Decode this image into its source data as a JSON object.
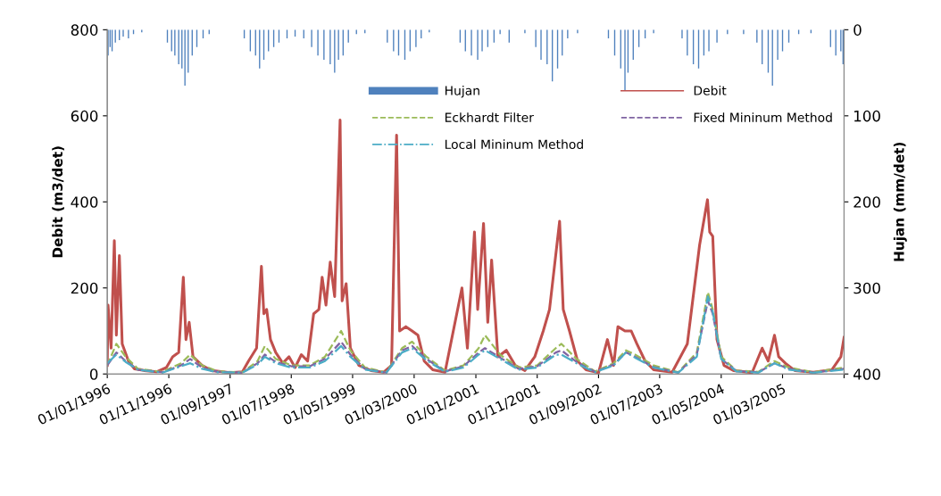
{
  "chart_data": {
    "type": "line",
    "ylabel": "Debit (m3/det)",
    "y2label": "Hujan (mm/det)",
    "ylim": [
      0,
      800
    ],
    "yticks": [
      0,
      200,
      400,
      600,
      800
    ],
    "y2lim": [
      400,
      0
    ],
    "y2ticks": [
      0,
      100,
      200,
      300,
      400
    ],
    "xlim": [
      "1996-01-01",
      "2005-12-31"
    ],
    "xticks": [
      {
        "value": "1996-01-01",
        "label": "01/01/1996"
      },
      {
        "value": "1996-11-01",
        "label": "01/11/1996"
      },
      {
        "value": "1997-09-01",
        "label": "01/09/1997"
      },
      {
        "value": "1998-07-01",
        "label": "01/07/1998"
      },
      {
        "value": "1999-05-01",
        "label": "01/05/1999"
      },
      {
        "value": "2000-03-01",
        "label": "01/03/2000"
      },
      {
        "value": "2001-01-01",
        "label": "01/01/2001"
      },
      {
        "value": "2001-11-01",
        "label": "01/11/2001"
      },
      {
        "value": "2002-09-01",
        "label": "01/09/2002"
      },
      {
        "value": "2003-07-01",
        "label": "01/07/2003"
      },
      {
        "value": "2004-05-01",
        "label": "01/05/2004"
      },
      {
        "value": "2005-03-01",
        "label": "01/03/2005"
      },
      {
        "value": "2005-12-31",
        "label": null
      }
    ],
    "grid": false,
    "legend": "top right",
    "series": [
      {
        "name": "Hujan",
        "type": "bar",
        "axis": "y2",
        "color": "#4f81bd",
        "x": [
          "1996-01-05",
          "1996-01-15",
          "1996-01-25",
          "1996-02-10",
          "1996-03-01",
          "1996-03-20",
          "1996-04-15",
          "1996-05-10",
          "1996-06-20",
          "1996-10-25",
          "1996-11-15",
          "1996-12-01",
          "1996-12-20",
          "1997-01-05",
          "1997-01-20",
          "1997-02-05",
          "1997-02-25",
          "1997-03-20",
          "1997-04-20",
          "1997-05-20",
          "1997-11-10",
          "1997-12-10",
          "1998-01-05",
          "1998-01-25",
          "1998-02-15",
          "1998-03-10",
          "1998-04-05",
          "1998-05-01",
          "1998-06-10",
          "1998-07-20",
          "1998-09-01",
          "1998-10-10",
          "1998-11-10",
          "1998-12-10",
          "1999-01-10",
          "1999-02-01",
          "1999-02-20",
          "1999-03-15",
          "1999-04-10",
          "1999-05-20",
          "1999-07-01",
          "1999-10-20",
          "1999-11-20",
          "1999-12-15",
          "2000-01-15",
          "2000-02-10",
          "2000-03-10",
          "2000-04-05",
          "2000-05-15",
          "2000-10-15",
          "2000-11-10",
          "2000-12-10",
          "2001-01-10",
          "2001-02-01",
          "2001-03-01",
          "2001-04-01",
          "2001-05-01",
          "2001-06-15",
          "2001-09-01",
          "2001-10-25",
          "2001-11-20",
          "2001-12-20",
          "2002-01-15",
          "2002-02-10",
          "2002-03-05",
          "2002-04-01",
          "2002-05-20",
          "2002-10-20",
          "2002-11-20",
          "2002-12-20",
          "2003-01-10",
          "2003-01-25",
          "2003-02-20",
          "2003-03-20",
          "2003-04-20",
          "2003-06-01",
          "2003-10-20",
          "2003-11-15",
          "2003-12-15",
          "2004-01-10",
          "2004-02-05",
          "2004-03-01",
          "2004-04-10",
          "2004-06-01",
          "2004-08-20",
          "2004-10-25",
          "2004-11-20",
          "2004-12-20",
          "2005-01-10",
          "2005-02-05",
          "2005-03-01",
          "2005-04-01",
          "2005-05-20",
          "2005-07-20",
          "2005-10-25",
          "2005-11-20",
          "2005-12-15",
          "2005-12-26"
        ],
        "values": [
          30,
          20,
          25,
          15,
          12,
          8,
          10,
          5,
          3,
          15,
          25,
          30,
          40,
          45,
          65,
          50,
          30,
          20,
          10,
          5,
          10,
          25,
          30,
          45,
          35,
          25,
          20,
          15,
          10,
          8,
          10,
          20,
          30,
          35,
          40,
          50,
          35,
          30,
          15,
          5,
          4,
          15,
          25,
          30,
          35,
          25,
          20,
          10,
          3,
          15,
          25,
          30,
          35,
          25,
          20,
          15,
          5,
          15,
          4,
          20,
          35,
          40,
          60,
          45,
          30,
          10,
          4,
          10,
          30,
          45,
          70,
          50,
          35,
          20,
          10,
          4,
          10,
          30,
          40,
          45,
          30,
          25,
          15,
          5,
          5,
          15,
          40,
          50,
          65,
          35,
          25,
          15,
          5,
          4,
          20,
          30,
          25,
          40
        ]
      },
      {
        "name": "Debit",
        "color": "#c0504d",
        "line_style": "solid",
        "x": [
          "1996-01-01",
          "1996-01-05",
          "1996-01-20",
          "1996-02-05",
          "1996-02-15",
          "1996-03-01",
          "1996-03-15",
          "1996-04-15",
          "1996-05-15",
          "1996-07-01",
          "1996-09-01",
          "1996-10-20",
          "1996-11-20",
          "1996-12-20",
          "1997-01-12",
          "1997-01-25",
          "1997-02-10",
          "1997-03-01",
          "1997-04-15",
          "1997-06-01",
          "1997-09-01",
          "1997-11-01",
          "1997-12-01",
          "1998-01-10",
          "1998-02-03",
          "1998-02-15",
          "1998-03-01",
          "1998-03-20",
          "1998-04-15",
          "1998-05-20",
          "1998-06-20",
          "1998-07-20",
          "1998-08-20",
          "1998-09-20",
          "1998-10-20",
          "1998-11-15",
          "1998-12-01",
          "1998-12-20",
          "1999-01-10",
          "1999-02-01",
          "1999-02-28",
          "1999-03-10",
          "1999-03-30",
          "1999-04-20",
          "1999-06-01",
          "1999-08-01",
          "1999-10-01",
          "1999-11-10",
          "1999-12-05",
          "1999-12-20",
          "2000-01-20",
          "2000-02-20",
          "2000-03-20",
          "2000-04-20",
          "2000-06-01",
          "2000-08-01",
          "2000-10-24",
          "2000-11-20",
          "2000-12-25",
          "2001-01-10",
          "2001-02-08",
          "2001-03-01",
          "2001-03-20",
          "2001-04-20",
          "2001-06-01",
          "2001-07-15",
          "2001-09-01",
          "2001-10-20",
          "2001-12-01",
          "2002-01-01",
          "2002-02-20",
          "2002-03-10",
          "2002-04-10",
          "2002-05-20",
          "2002-07-01",
          "2002-09-01",
          "2002-10-15",
          "2002-11-15",
          "2002-12-06",
          "2003-01-10",
          "2003-02-10",
          "2003-03-10",
          "2003-04-20",
          "2003-06-01",
          "2003-09-01",
          "2003-11-15",
          "2004-01-15",
          "2004-02-23",
          "2004-03-05",
          "2004-03-20",
          "2004-04-10",
          "2004-05-15",
          "2004-07-01",
          "2004-10-01",
          "2004-11-20",
          "2004-12-20",
          "2005-01-20",
          "2005-02-10",
          "2005-03-15",
          "2005-05-01",
          "2005-08-01",
          "2005-11-01",
          "2005-12-15",
          "2005-12-31"
        ],
        "values": [
          20,
          160,
          60,
          310,
          90,
          275,
          70,
          30,
          12,
          8,
          5,
          15,
          40,
          50,
          225,
          80,
          120,
          40,
          20,
          8,
          3,
          5,
          30,
          60,
          250,
          140,
          150,
          80,
          50,
          25,
          40,
          15,
          45,
          30,
          140,
          150,
          225,
          160,
          260,
          180,
          590,
          170,
          210,
          60,
          20,
          8,
          4,
          20,
          555,
          100,
          110,
          100,
          90,
          30,
          10,
          4,
          200,
          60,
          330,
          150,
          350,
          120,
          265,
          40,
          55,
          20,
          8,
          40,
          100,
          150,
          355,
          150,
          100,
          30,
          10,
          3,
          80,
          20,
          110,
          100,
          100,
          70,
          30,
          10,
          4,
          70,
          300,
          405,
          330,
          320,
          80,
          20,
          8,
          3,
          60,
          30,
          90,
          40,
          25,
          8,
          4,
          10,
          40,
          85
        ]
      },
      {
        "name": "Eckhardt Filter",
        "color": "#9bbb59",
        "line_style": "dashed",
        "x": [
          "1996-01-01",
          "1996-02-15",
          "1996-04-01",
          "1996-06-01",
          "1996-10-01",
          "1997-01-01",
          "1997-02-15",
          "1997-04-15",
          "1997-07-01",
          "1997-11-01",
          "1998-01-15",
          "1998-02-20",
          "1998-04-15",
          "1998-07-01",
          "1998-10-01",
          "1998-12-15",
          "1999-03-05",
          "1999-04-20",
          "1999-07-01",
          "1999-10-15",
          "2000-01-01",
          "2000-02-20",
          "2000-05-01",
          "2000-08-01",
          "2000-11-01",
          "2001-01-15",
          "2001-02-15",
          "2001-05-01",
          "2001-08-01",
          "2001-11-01",
          "2002-02-01",
          "2002-03-01",
          "2002-05-15",
          "2002-08-15",
          "2002-11-15",
          "2003-01-15",
          "2003-03-01",
          "2003-06-01",
          "2003-10-01",
          "2004-01-01",
          "2004-02-25",
          "2004-03-20",
          "2004-05-01",
          "2004-07-15",
          "2004-11-01",
          "2005-01-20",
          "2005-04-01",
          "2005-08-01",
          "2005-12-31"
        ],
        "values": [
          20,
          70,
          40,
          12,
          5,
          25,
          45,
          20,
          6,
          4,
          30,
          65,
          35,
          20,
          20,
          40,
          100,
          55,
          15,
          4,
          60,
          75,
          40,
          8,
          20,
          60,
          90,
          45,
          15,
          20,
          60,
          70,
          35,
          6,
          25,
          55,
          45,
          20,
          4,
          50,
          190,
          150,
          40,
          8,
          5,
          30,
          15,
          4,
          15
        ]
      },
      {
        "name": "Fixed Mininum Method",
        "color": "#8064a2",
        "line_style": "dashed",
        "x": [
          "1996-01-01",
          "1996-02-15",
          "1996-04-01",
          "1996-06-01",
          "1996-10-01",
          "1997-01-01",
          "1997-02-15",
          "1997-04-15",
          "1997-07-01",
          "1997-11-01",
          "1998-01-15",
          "1998-02-20",
          "1998-04-15",
          "1998-07-01",
          "1998-10-01",
          "1998-12-15",
          "1999-03-05",
          "1999-04-20",
          "1999-07-01",
          "1999-10-15",
          "2000-01-01",
          "2000-02-20",
          "2000-05-01",
          "2000-08-01",
          "2000-11-01",
          "2001-01-15",
          "2001-02-15",
          "2001-05-01",
          "2001-08-01",
          "2001-11-01",
          "2002-02-01",
          "2002-03-01",
          "2002-05-15",
          "2002-08-15",
          "2002-11-15",
          "2003-01-15",
          "2003-03-01",
          "2003-06-01",
          "2003-10-01",
          "2004-01-01",
          "2004-02-25",
          "2004-03-20",
          "2004-05-01",
          "2004-07-15",
          "2004-11-01",
          "2005-01-20",
          "2005-04-01",
          "2005-08-01",
          "2005-12-31"
        ],
        "values": [
          20,
          50,
          30,
          10,
          4,
          20,
          35,
          15,
          5,
          3,
          25,
          45,
          28,
          18,
          18,
          35,
          75,
          45,
          12,
          3,
          55,
          65,
          35,
          6,
          18,
          50,
          60,
          38,
          12,
          18,
          50,
          55,
          28,
          5,
          22,
          50,
          40,
          16,
          3,
          45,
          170,
          140,
          35,
          7,
          4,
          25,
          12,
          3,
          12
        ]
      },
      {
        "name": "Local Mininum Method",
        "color": "#4bacc6",
        "line_style": "dashdot",
        "x": [
          "1996-01-01",
          "1996-02-15",
          "1996-04-01",
          "1996-06-01",
          "1996-10-01",
          "1997-01-01",
          "1997-02-15",
          "1997-04-15",
          "1997-07-01",
          "1997-11-01",
          "1998-01-15",
          "1998-02-20",
          "1998-04-15",
          "1998-07-01",
          "1998-10-01",
          "1998-12-15",
          "1999-03-05",
          "1999-04-20",
          "1999-07-01",
          "1999-10-15",
          "2000-01-01",
          "2000-02-20",
          "2000-05-01",
          "2000-08-01",
          "2000-11-01",
          "2001-01-15",
          "2001-02-15",
          "2001-05-01",
          "2001-08-01",
          "2001-11-01",
          "2002-02-01",
          "2002-03-01",
          "2002-05-15",
          "2002-08-15",
          "2002-11-15",
          "2003-01-15",
          "2003-03-01",
          "2003-06-01",
          "2003-10-01",
          "2004-01-01",
          "2004-02-25",
          "2004-03-20",
          "2004-05-01",
          "2004-07-15",
          "2004-11-01",
          "2005-01-20",
          "2005-04-01",
          "2005-08-01",
          "2005-12-31"
        ],
        "values": [
          25,
          45,
          28,
          10,
          3,
          18,
          25,
          12,
          4,
          3,
          22,
          40,
          25,
          15,
          15,
          30,
          65,
          40,
          10,
          3,
          50,
          60,
          32,
          5,
          15,
          45,
          55,
          35,
          10,
          15,
          45,
          45,
          25,
          4,
          20,
          50,
          38,
          15,
          3,
          40,
          180,
          145,
          35,
          6,
          3,
          25,
          10,
          3,
          10
        ]
      }
    ]
  }
}
